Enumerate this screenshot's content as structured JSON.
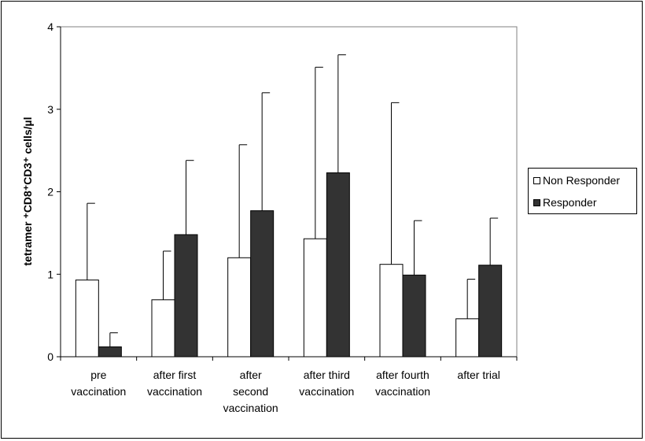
{
  "chart_data": {
    "type": "bar",
    "title": "",
    "xlabel": "",
    "ylabel": "tetramer ⁺CD8⁺CD3⁺ cells/µl",
    "ylim": [
      0,
      4
    ],
    "yticks": [
      0,
      1,
      2,
      3,
      4
    ],
    "grid": false,
    "legend_position": "right",
    "categories": [
      [
        "pre",
        "vaccination"
      ],
      [
        "after first",
        "vaccination"
      ],
      [
        "after",
        "second",
        "vaccination"
      ],
      [
        "after third",
        "vaccination"
      ],
      [
        "after fourth",
        "vaccination"
      ],
      [
        "after trial"
      ]
    ],
    "series": [
      {
        "name": "Non Responder",
        "color": "#ffffff",
        "values": [
          0.93,
          0.69,
          1.2,
          1.43,
          1.12,
          0.46
        ],
        "error_upper": [
          1.86,
          1.28,
          2.57,
          3.51,
          3.08,
          0.94
        ]
      },
      {
        "name": "Responder",
        "color": "#333333",
        "values": [
          0.12,
          1.48,
          1.77,
          2.23,
          0.99,
          1.11
        ],
        "error_upper": [
          0.29,
          2.38,
          3.2,
          3.66,
          1.65,
          1.68
        ]
      }
    ]
  }
}
